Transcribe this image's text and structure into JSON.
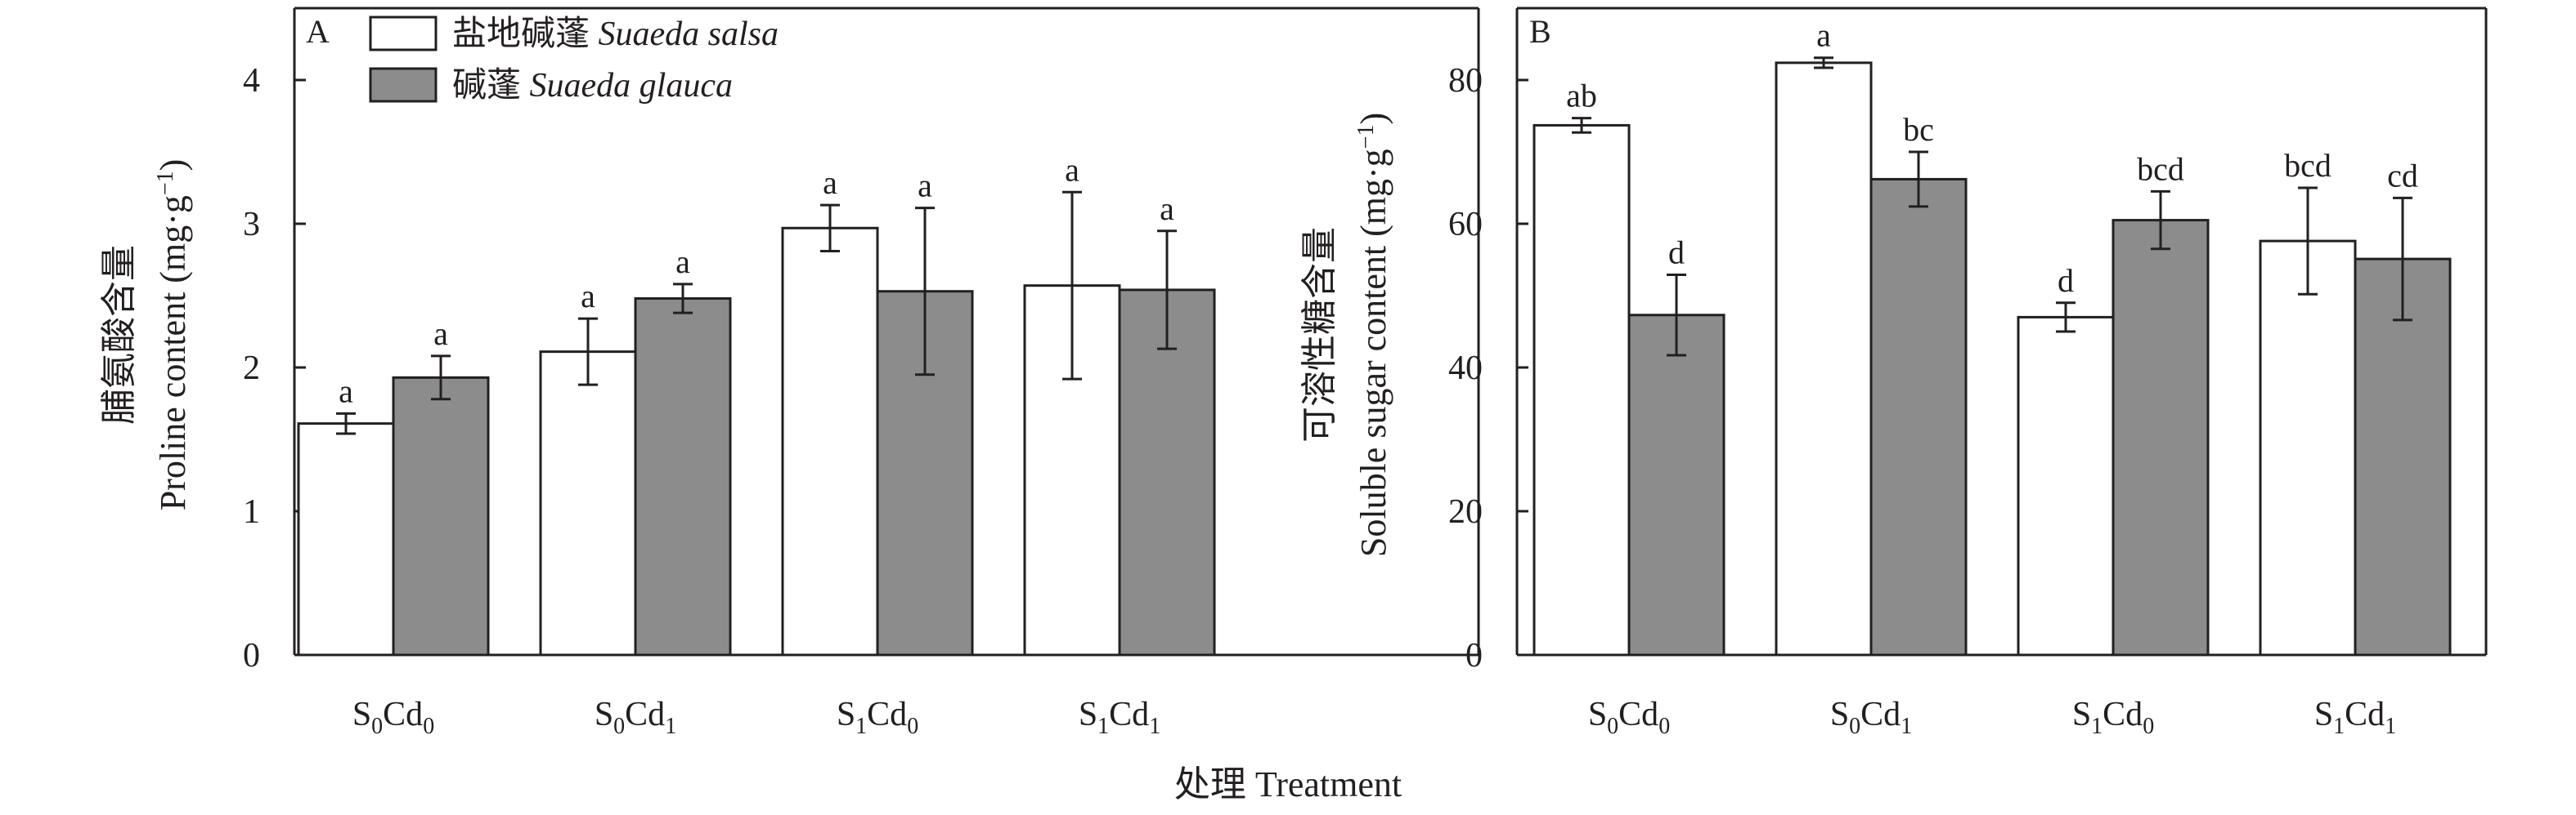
{
  "figure": {
    "xlabel": "处理 Treatment",
    "legend": {
      "placement": "top-left of panel A",
      "entries": [
        {
          "cn": "盐地碱蓬",
          "latin": "Suaeda salsa",
          "color": "#ffffff"
        },
        {
          "cn": "碱蓬",
          "latin": "Suaeda glauca",
          "color": "#8c8c8c"
        }
      ]
    }
  },
  "chart_data": [
    {
      "type": "bar",
      "panel": "A",
      "categories": [
        {
          "base": "S",
          "s": "0",
          "mid": "Cd",
          "c": "0"
        },
        {
          "base": "S",
          "s": "0",
          "mid": "Cd",
          "c": "1"
        },
        {
          "base": "S",
          "s": "1",
          "mid": "Cd",
          "c": "0"
        },
        {
          "base": "S",
          "s": "1",
          "mid": "Cd",
          "c": "1"
        }
      ],
      "ylabel_cn": "脯氨酸含量",
      "ylabel_en": "Proline content (mg·g",
      "ylabel_sup": "−1",
      "ylabel_close": ")",
      "ylim": [
        0,
        4.5
      ],
      "yticks": [
        0,
        1,
        2,
        3,
        4
      ],
      "series": [
        {
          "name": "盐地碱蓬 Suaeda salsa",
          "color": "#ffffff",
          "values": [
            1.61,
            2.11,
            2.97,
            2.57
          ],
          "errors": [
            0.07,
            0.23,
            0.16,
            0.65
          ],
          "labels": [
            "a",
            "a",
            "a",
            "a"
          ]
        },
        {
          "name": "碱蓬 Suaeda glauca",
          "color": "#8c8c8c",
          "values": [
            1.93,
            2.48,
            2.53,
            2.54
          ],
          "errors": [
            0.15,
            0.1,
            0.58,
            0.41
          ],
          "labels": [
            "a",
            "a",
            "a",
            "a"
          ]
        }
      ]
    },
    {
      "type": "bar",
      "panel": "B",
      "categories": [
        {
          "base": "S",
          "s": "0",
          "mid": "Cd",
          "c": "0"
        },
        {
          "base": "S",
          "s": "0",
          "mid": "Cd",
          "c": "1"
        },
        {
          "base": "S",
          "s": "1",
          "mid": "Cd",
          "c": "0"
        },
        {
          "base": "S",
          "s": "1",
          "mid": "Cd",
          "c": "1"
        }
      ],
      "ylabel_cn": "可溶性糖含量",
      "ylabel_en": "Soluble sugar content (mg·g",
      "ylabel_sup": "−1",
      "ylabel_close": ")",
      "ylim": [
        0,
        90
      ],
      "yticks": [
        0,
        20,
        40,
        60,
        80
      ],
      "series": [
        {
          "name": "盐地碱蓬 Suaeda salsa",
          "color": "#ffffff",
          "values": [
            73.7,
            82.4,
            47.0,
            57.6
          ],
          "errors": [
            1.0,
            0.7,
            2.0,
            7.4
          ],
          "labels": [
            "ab",
            "a",
            "d",
            "bcd"
          ]
        },
        {
          "name": "碱蓬 Suaeda glauca",
          "color": "#8c8c8c",
          "values": [
            47.3,
            66.2,
            60.5,
            55.1
          ],
          "errors": [
            5.6,
            3.8,
            4.0,
            8.5
          ],
          "labels": [
            "d",
            "bc",
            "bcd",
            "cd"
          ]
        }
      ]
    }
  ]
}
